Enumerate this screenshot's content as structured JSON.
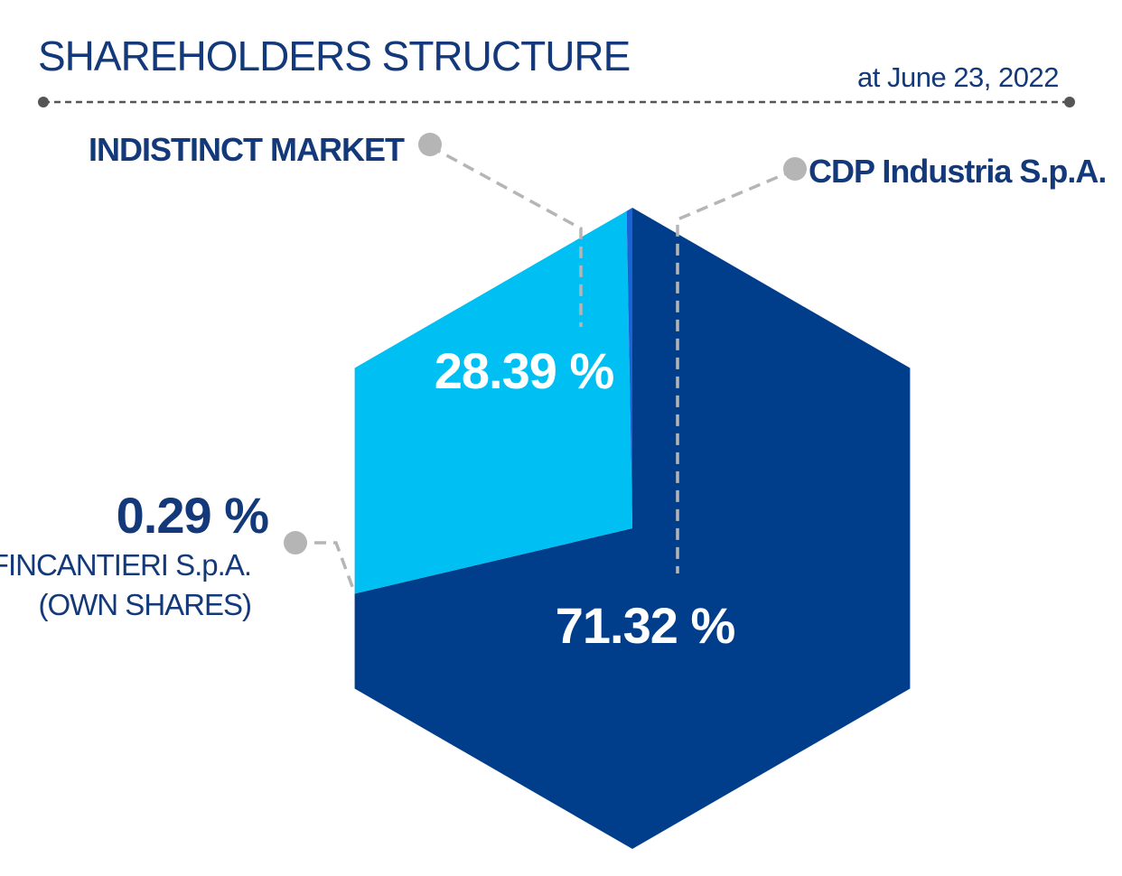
{
  "header": {
    "title": "SHAREHOLDERS STRUCTURE",
    "date": "at June 23, 2022"
  },
  "colors": {
    "navy": "#003e8c",
    "light_blue": "#00c0f3",
    "mid_blue": "#1b64d6",
    "text_navy": "#13397a",
    "leader_grey": "#b5b5b5",
    "rule_grey": "#555555"
  },
  "chart_data": {
    "type": "pie",
    "shape": "hexagon",
    "title": "SHAREHOLDERS STRUCTURE",
    "subtitle": "at June 23, 2022",
    "slices": [
      {
        "label": "CDP Industria S.p.A.",
        "value": 71.32,
        "value_label": "71.32 %",
        "color": "#003e8c"
      },
      {
        "label": "INDISTINCT MARKET",
        "value": 28.39,
        "value_label": "28.39 %",
        "color": "#00c0f3"
      },
      {
        "label_lines": [
          "FINCANTIERI S.p.A.",
          "(OWN SHARES)"
        ],
        "value": 0.29,
        "value_label": "0.29 %",
        "color": "#1b64d6"
      }
    ]
  }
}
